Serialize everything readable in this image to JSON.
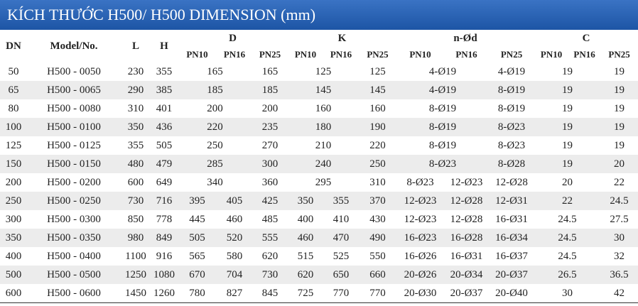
{
  "title": "KÍCH THƯỚC H500/ H500 DIMENSION (mm)",
  "header": {
    "dn": "DN",
    "model": "Model/No.",
    "l": "L",
    "h": "H",
    "groups": [
      {
        "name": "D",
        "sub": [
          "PN10",
          "PN16",
          "PN25"
        ]
      },
      {
        "name": "K",
        "sub": [
          "PN10",
          "PN16",
          "PN25"
        ]
      },
      {
        "name": "n-Ød",
        "sub": [
          "PN10",
          "PN16",
          "PN25"
        ]
      },
      {
        "name": "C",
        "sub": [
          "PN10",
          "PN16",
          "PN25"
        ]
      }
    ]
  },
  "rows": [
    {
      "dn": "50",
      "model": "H500 - 0050",
      "l": "230",
      "h": "355",
      "d": [
        "165",
        "165"
      ],
      "k": [
        "125",
        "125"
      ],
      "nd": [
        "4-Ø19",
        "4-Ø19"
      ],
      "c": [
        "19",
        "19"
      ]
    },
    {
      "dn": "65",
      "model": "H500 - 0065",
      "l": "290",
      "h": "385",
      "d": [
        "185",
        "185"
      ],
      "k": [
        "145",
        "145"
      ],
      "nd": [
        "4-Ø19",
        "8-Ø19"
      ],
      "c": [
        "19",
        "19"
      ]
    },
    {
      "dn": "80",
      "model": "H500 - 0080",
      "l": "310",
      "h": "401",
      "d": [
        "200",
        "200"
      ],
      "k": [
        "160",
        "160"
      ],
      "nd": [
        "8-Ø19",
        "8-Ø19"
      ],
      "c": [
        "19",
        "19"
      ]
    },
    {
      "dn": "100",
      "model": "H500 - 0100",
      "l": "350",
      "h": "436",
      "d": [
        "220",
        "235"
      ],
      "k": [
        "180",
        "190"
      ],
      "nd": [
        "8-Ø19",
        "8-Ø23"
      ],
      "c": [
        "19",
        "19"
      ]
    },
    {
      "dn": "125",
      "model": "H500 - 0125",
      "l": "355",
      "h": "505",
      "d": [
        "250",
        "270"
      ],
      "k": [
        "210",
        "220"
      ],
      "nd": [
        "8-Ø19",
        "8-Ø23"
      ],
      "c": [
        "19",
        "19"
      ]
    },
    {
      "dn": "150",
      "model": "H500 - 0150",
      "l": "480",
      "h": "479",
      "d": [
        "285",
        "300"
      ],
      "k": [
        "240",
        "250"
      ],
      "nd": [
        "8-Ø23",
        "8-Ø28"
      ],
      "c": [
        "19",
        "20"
      ]
    },
    {
      "dn": "200",
      "model": "H500 - 0200",
      "l": "600",
      "h": "649",
      "d": [
        "340",
        "360"
      ],
      "k": [
        "295",
        "310"
      ],
      "nd": [
        "8-Ø23",
        "12-Ø23",
        "12-Ø28"
      ],
      "c": [
        "20",
        "22"
      ]
    },
    {
      "dn": "250",
      "model": "H500 - 0250",
      "l": "730",
      "h": "716",
      "d": [
        "395",
        "405",
        "425"
      ],
      "k": [
        "350",
        "355",
        "370"
      ],
      "nd": [
        "12-Ø23",
        "12-Ø28",
        "12-Ø31"
      ],
      "c": [
        "22",
        "24.5"
      ]
    },
    {
      "dn": "300",
      "model": "H500 - 0300",
      "l": "850",
      "h": "778",
      "d": [
        "445",
        "460",
        "485"
      ],
      "k": [
        "400",
        "410",
        "430"
      ],
      "nd": [
        "12-Ø23",
        "12-Ø28",
        "16-Ø31"
      ],
      "c": [
        "24.5",
        "27.5"
      ]
    },
    {
      "dn": "350",
      "model": "H500 - 0350",
      "l": "980",
      "h": "849",
      "d": [
        "505",
        "520",
        "555"
      ],
      "k": [
        "460",
        "470",
        "490"
      ],
      "nd": [
        "16-Ø23",
        "16-Ø28",
        "16-Ø34"
      ],
      "c": [
        "24.5",
        "30"
      ]
    },
    {
      "dn": "400",
      "model": "H500 - 0400",
      "l": "1100",
      "h": "916",
      "d": [
        "565",
        "580",
        "620"
      ],
      "k": [
        "515",
        "525",
        "550"
      ],
      "nd": [
        "16-Ø26",
        "16-Ø31",
        "16-Ø37"
      ],
      "c": [
        "24.5",
        "32"
      ]
    },
    {
      "dn": "500",
      "model": "H500 - 0500",
      "l": "1250",
      "h": "1080",
      "d": [
        "670",
        "704",
        "730"
      ],
      "k": [
        "620",
        "650",
        "660"
      ],
      "nd": [
        "20-Ø26",
        "20-Ø34",
        "20-Ø37"
      ],
      "c": [
        "26.5",
        "36.5"
      ]
    },
    {
      "dn": "600",
      "model": "H500 - 0600",
      "l": "1450",
      "h": "1260",
      "d": [
        "780",
        "827",
        "845"
      ],
      "k": [
        "725",
        "770",
        "770"
      ],
      "nd": [
        "20-Ø30",
        "20-Ø37",
        "20-Ø40"
      ],
      "c": [
        "30",
        "42"
      ]
    }
  ]
}
